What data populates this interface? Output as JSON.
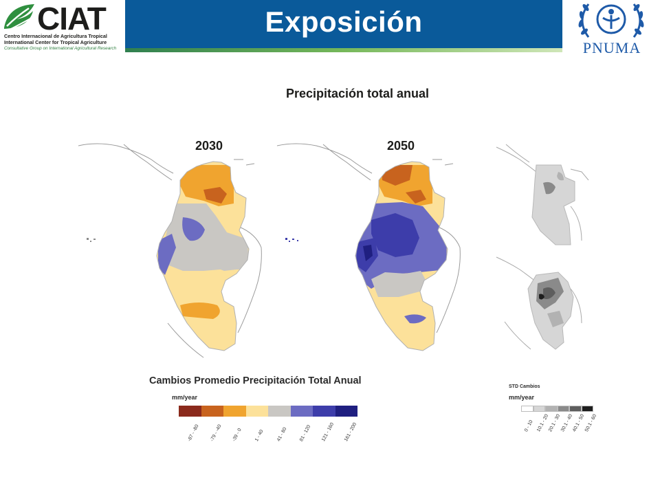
{
  "header": {
    "title": "Exposición",
    "left_logo": {
      "wordmark": "CIAT",
      "line1": "Centro Internacional de Agricultura Tropical",
      "line2": "International Center for Tropical Agriculture",
      "line3": "Consultative Group on International Agricultural Research"
    },
    "right_logo": {
      "wordmark": "PNUMA"
    }
  },
  "main": {
    "subtitle": "Precipitación total anual",
    "map_labels": [
      "2030",
      "2050"
    ]
  },
  "legend": {
    "title": "Cambios Promedio Precipitación Total Anual",
    "unit": "mm/year",
    "classes": [
      {
        "label": "-87 - -80",
        "color": "#8b2a1c"
      },
      {
        "label": "-79 - -40",
        "color": "#c8631e"
      },
      {
        "label": "-39 - 0",
        "color": "#f0a42f"
      },
      {
        "label": "1 - 40",
        "color": "#fce19a"
      },
      {
        "label": "41 - 80",
        "color": "#c9c7c3"
      },
      {
        "label": "81 - 120",
        "color": "#6c6cc2"
      },
      {
        "label": "121 - 160",
        "color": "#3d3daa"
      },
      {
        "label": "161 - 200",
        "color": "#1f1f80"
      }
    ]
  },
  "std_legend": {
    "title": "STD Cambios",
    "unit": "mm/year",
    "classes": [
      {
        "label": "0 - 10",
        "color": "#ffffff"
      },
      {
        "label": "10.1 - 20",
        "color": "#d6d6d6"
      },
      {
        "label": "20.1 - 30",
        "color": "#b2b2b2"
      },
      {
        "label": "30.1 - 40",
        "color": "#8a8a8a"
      },
      {
        "label": "40.1 - 50",
        "color": "#5e5e5e"
      },
      {
        "label": "50.1 - 60",
        "color": "#1e1e1e"
      }
    ]
  },
  "colors": {
    "header_blue": "#0a5a9a",
    "accent_green": "#76b85a"
  }
}
